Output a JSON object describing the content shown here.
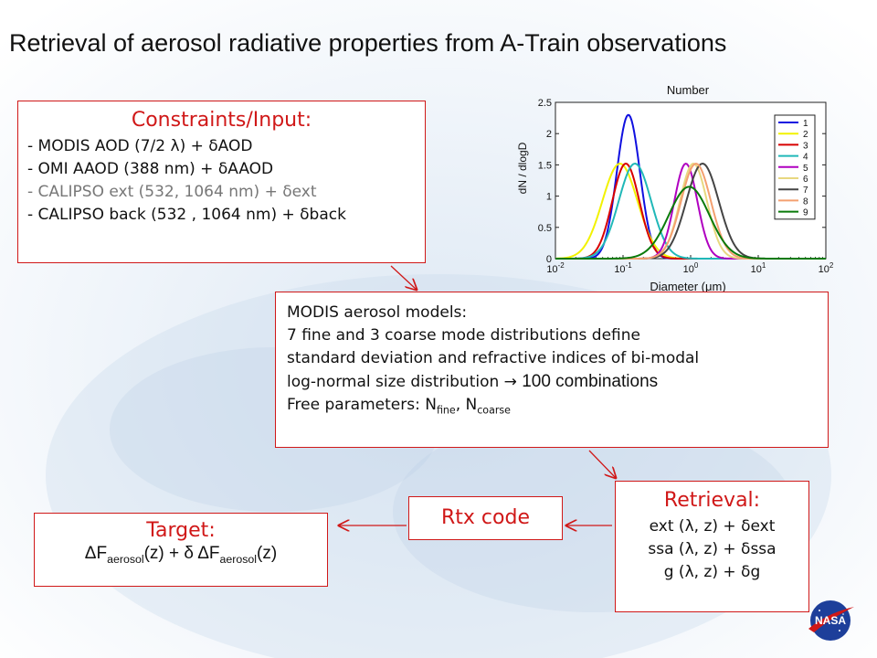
{
  "title": "Retrieval of aerosol radiative properties from A-Train observations",
  "constraints": {
    "title": "Constraints/Input:",
    "lines": [
      {
        "prefix": "- MODIS   AOD (7/2 ",
        "sym1": "λ",
        "mid": ") + ",
        "sym2": "δ",
        "suffix": "AOD"
      },
      {
        "prefix": "- OMI       AAOD (388 nm) + ",
        "sym2": "δ",
        "suffix": "AAOD"
      },
      {
        "prefix": "- CALIPSO ext (532, 1064 nm) + ",
        "sym2": "δ",
        "suffix": "ext"
      },
      {
        "prefix": "- CALIPSO back (532 , 1064 nm) + ",
        "sym2": "δ",
        "suffix": "back"
      }
    ]
  },
  "models": {
    "line1": "MODIS aerosol models:",
    "line2": "7 fine and 3 coarse mode distributions define",
    "line3": "standard deviation and refractive indices of bi-modal",
    "line4_a": "log-normal size distribution ",
    "line4_arrow": "→",
    "line4_b": " 100 combinations",
    "line5_a": "Free parameters: N",
    "line5_sub1": "fine",
    "line5_b": ", N",
    "line5_sub2": "coarse"
  },
  "retrieval": {
    "title": "Retrieval:",
    "lines": [
      {
        "a": "ext (",
        "lam": "λ",
        "b": ", z) + ",
        "d": "δ",
        "c": "ext"
      },
      {
        "a": "ssa (",
        "lam": "λ",
        "b": ", z) + ",
        "d": "δ",
        "c": "ssa"
      },
      {
        "a": "g (",
        "lam": "λ",
        "b": ", z) + ",
        "d": "δ",
        "c": "g"
      }
    ]
  },
  "rtx": {
    "label": "Rtx code"
  },
  "target": {
    "title": "Target:",
    "delta1": "Δ",
    "f1": "F",
    "sub1": "aerosol",
    "z1": "(z) + ",
    "delta_small": "δ",
    "delta2": " Δ",
    "f2": "F",
    "sub2": "aerosol",
    "z2": "(z)"
  },
  "nasa_logo": {
    "text": "NASA"
  },
  "chart_data": {
    "type": "line",
    "title": "Number",
    "xlabel": "Diameter (μm)",
    "ylabel": "dN / dlogD",
    "xscale": "log",
    "xlim": [
      0.01,
      100
    ],
    "ylim": [
      0,
      2.5
    ],
    "xticks": [
      0.01,
      0.1,
      1,
      10,
      100
    ],
    "xtick_labels": [
      {
        "base": "10",
        "exp": "-2"
      },
      {
        "base": "10",
        "exp": "-1"
      },
      {
        "base": "10",
        "exp": "0"
      },
      {
        "base": "10",
        "exp": "1"
      },
      {
        "base": "10",
        "exp": "2"
      }
    ],
    "yticks": [
      0,
      0.5,
      1,
      1.5,
      2,
      2.5
    ],
    "ytick_labels": [
      "0",
      "0.5",
      "1",
      "1.5",
      "2",
      "2.5"
    ],
    "legend_position": "right",
    "series": [
      {
        "name": "1",
        "color": "#1010e0",
        "peak_diameter": 0.12,
        "peak_value": 2.3,
        "log_sigma": 0.17
      },
      {
        "name": "2",
        "color": "#f2f200",
        "peak_diameter": 0.09,
        "peak_value": 1.52,
        "log_sigma": 0.26
      },
      {
        "name": "3",
        "color": "#d80000",
        "peak_diameter": 0.11,
        "peak_value": 1.52,
        "log_sigma": 0.2
      },
      {
        "name": "4",
        "color": "#20b8b8",
        "peak_diameter": 0.15,
        "peak_value": 1.52,
        "log_sigma": 0.24
      },
      {
        "name": "5",
        "color": "#b000c0",
        "peak_diameter": 0.85,
        "peak_value": 1.52,
        "log_sigma": 0.17
      },
      {
        "name": "6",
        "color": "#e8d880",
        "peak_diameter": 1.1,
        "peak_value": 1.52,
        "log_sigma": 0.2
      },
      {
        "name": "7",
        "color": "#444444",
        "peak_diameter": 1.5,
        "peak_value": 1.52,
        "log_sigma": 0.24
      },
      {
        "name": "8",
        "color": "#f4a070",
        "peak_diameter": 1.2,
        "peak_value": 1.52,
        "log_sigma": 0.22
      },
      {
        "name": "9",
        "color": "#0a7a0a",
        "peak_diameter": 0.95,
        "peak_value": 1.15,
        "log_sigma": 0.3
      }
    ]
  }
}
